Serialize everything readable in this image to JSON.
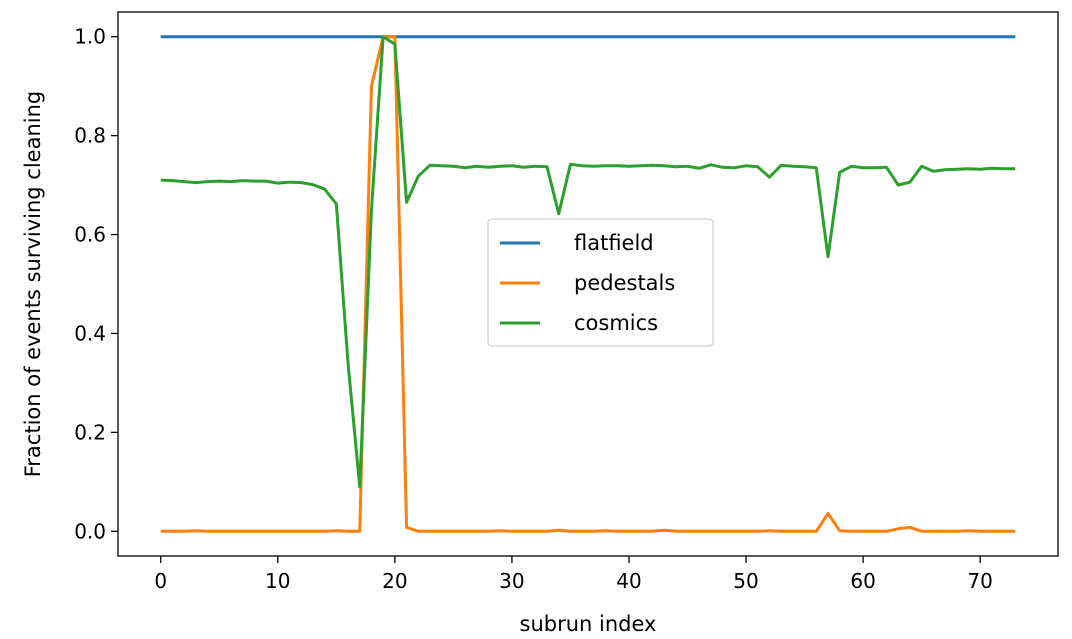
{
  "chart_data": {
    "type": "line",
    "title": "",
    "xlabel": "subrun index",
    "ylabel": "Fraction of events surviving cleaning",
    "xlim": [
      -3.65,
      76.65
    ],
    "ylim": [
      -0.05,
      1.05
    ],
    "xticks": [
      0,
      10,
      20,
      30,
      40,
      50,
      60,
      70
    ],
    "yticks": [
      0.0,
      0.2,
      0.4,
      0.6,
      0.8,
      1.0
    ],
    "xtick_labels": [
      "0",
      "10",
      "20",
      "30",
      "40",
      "50",
      "60",
      "70"
    ],
    "ytick_labels": [
      "0.0",
      "0.2",
      "0.4",
      "0.6",
      "0.8",
      "1.0"
    ],
    "grid": false,
    "legend_position": "center",
    "x": [
      0,
      1,
      2,
      3,
      4,
      5,
      6,
      7,
      8,
      9,
      10,
      11,
      12,
      13,
      14,
      15,
      16,
      17,
      18,
      19,
      20,
      21,
      22,
      23,
      24,
      25,
      26,
      27,
      28,
      29,
      30,
      31,
      32,
      33,
      34,
      35,
      36,
      37,
      38,
      39,
      40,
      41,
      42,
      43,
      44,
      45,
      46,
      47,
      48,
      49,
      50,
      51,
      52,
      53,
      54,
      55,
      56,
      57,
      58,
      59,
      60,
      61,
      62,
      63,
      64,
      65,
      66,
      67,
      68,
      69,
      70,
      71,
      72,
      73
    ],
    "series": [
      {
        "name": "flatfield",
        "color": "#1f77b4",
        "values": [
          1,
          1,
          1,
          1,
          1,
          1,
          1,
          1,
          1,
          1,
          1,
          1,
          1,
          1,
          1,
          1,
          1,
          1,
          1,
          1,
          1,
          1,
          1,
          1,
          1,
          1,
          1,
          1,
          1,
          1,
          1,
          1,
          1,
          1,
          1,
          1,
          1,
          1,
          1,
          1,
          1,
          1,
          1,
          1,
          1,
          1,
          1,
          1,
          1,
          1,
          1,
          1,
          1,
          1,
          1,
          1,
          1,
          1,
          1,
          1,
          1,
          1,
          1,
          1,
          1,
          1,
          1,
          1,
          1,
          1,
          1,
          1,
          1,
          1
        ]
      },
      {
        "name": "pedestals",
        "color": "#ff7f0e",
        "values": [
          0,
          0,
          0,
          0.001,
          0,
          0,
          0,
          0,
          0,
          0,
          0,
          0,
          0,
          0,
          0,
          0.001,
          0,
          0,
          0.9,
          1.0,
          1.0,
          0.008,
          0,
          0,
          0,
          0,
          0,
          0,
          0,
          0.001,
          0,
          0,
          0,
          0,
          0.002,
          0,
          0,
          0,
          0.001,
          0,
          0,
          0,
          0,
          0.002,
          0,
          0,
          0,
          0,
          0,
          0,
          0,
          0,
          0.001,
          0,
          0,
          0,
          0,
          0.036,
          0.001,
          0,
          0,
          0,
          0,
          0.005,
          0.008,
          0,
          0,
          0,
          0,
          0.001,
          0,
          0,
          0,
          0
        ]
      },
      {
        "name": "cosmics",
        "color": "#2ca02c",
        "values": [
          0.71,
          0.709,
          0.707,
          0.705,
          0.707,
          0.708,
          0.707,
          0.709,
          0.708,
          0.708,
          0.704,
          0.706,
          0.705,
          0.701,
          0.692,
          0.662,
          0.34,
          0.09,
          0.65,
          1.0,
          0.985,
          0.665,
          0.718,
          0.74,
          0.739,
          0.738,
          0.735,
          0.738,
          0.736,
          0.738,
          0.739,
          0.736,
          0.738,
          0.737,
          0.642,
          0.742,
          0.739,
          0.738,
          0.739,
          0.739,
          0.738,
          0.739,
          0.74,
          0.739,
          0.737,
          0.738,
          0.734,
          0.741,
          0.736,
          0.735,
          0.739,
          0.737,
          0.716,
          0.74,
          0.738,
          0.737,
          0.735,
          0.555,
          0.726,
          0.738,
          0.735,
          0.735,
          0.736,
          0.7,
          0.706,
          0.738,
          0.728,
          0.731,
          0.732,
          0.733,
          0.732,
          0.734,
          0.733,
          0.733
        ]
      }
    ]
  }
}
